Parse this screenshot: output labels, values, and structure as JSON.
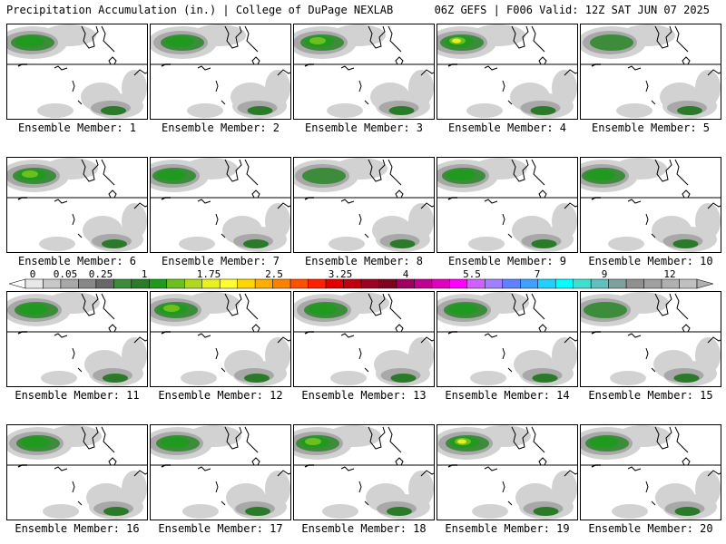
{
  "header": {
    "left": "Precipitation Accumulation (in.) | College of DuPage NEXLAB",
    "right": "06Z GEFS | F006 Valid: 12Z SAT JUN 07 2025"
  },
  "members": [
    {
      "label": "Ensemble Member: 1",
      "intensity": 2
    },
    {
      "label": "Ensemble Member: 2",
      "intensity": 2
    },
    {
      "label": "Ensemble Member: 3",
      "intensity": 3
    },
    {
      "label": "Ensemble Member: 4",
      "intensity": 4
    },
    {
      "label": "Ensemble Member: 5",
      "intensity": 1
    },
    {
      "label": "Ensemble Member: 6",
      "intensity": 3
    },
    {
      "label": "Ensemble Member: 7",
      "intensity": 2
    },
    {
      "label": "Ensemble Member: 8",
      "intensity": 1
    },
    {
      "label": "Ensemble Member: 9",
      "intensity": 2
    },
    {
      "label": "Ensemble Member: 10",
      "intensity": 2
    },
    {
      "label": "Ensemble Member: 11",
      "intensity": 2
    },
    {
      "label": "Ensemble Member: 12",
      "intensity": 3
    },
    {
      "label": "Ensemble Member: 13",
      "intensity": 2
    },
    {
      "label": "Ensemble Member: 14",
      "intensity": 2
    },
    {
      "label": "Ensemble Member: 15",
      "intensity": 1
    },
    {
      "label": "Ensemble Member: 16",
      "intensity": 2
    },
    {
      "label": "Ensemble Member: 17",
      "intensity": 2
    },
    {
      "label": "Ensemble Member: 18",
      "intensity": 3
    },
    {
      "label": "Ensemble Member: 19",
      "intensity": 4
    },
    {
      "label": "Ensemble Member: 20",
      "intensity": 2
    }
  ],
  "colorbar": {
    "unit": "in.",
    "tick_labels": [
      "0",
      "0.05",
      "0.25",
      "1",
      "1.75",
      "2.5",
      "3.25",
      "4",
      "5.5",
      "7",
      "9",
      "12"
    ],
    "colors": [
      "#e8e8e8",
      "#c8c8c8",
      "#a8a8a8",
      "#888888",
      "#686868",
      "#3c8c3c",
      "#2a7a2a",
      "#1f9a1f",
      "#6cc01e",
      "#b0d81e",
      "#e8f020",
      "#ffff30",
      "#ffd700",
      "#ffae00",
      "#ff8000",
      "#ff5000",
      "#ff2000",
      "#e00000",
      "#c00010",
      "#a00020",
      "#800020",
      "#a00060",
      "#c00090",
      "#e000c0",
      "#ff00ff",
      "#d060ff",
      "#a080ff",
      "#6080ff",
      "#40a0ff",
      "#20d0ff",
      "#00ffff",
      "#40e0d0",
      "#60c0c0",
      "#80a0a0",
      "#909090",
      "#a0a0a0",
      "#b0b0b0",
      "#c0c0c0"
    ]
  }
}
